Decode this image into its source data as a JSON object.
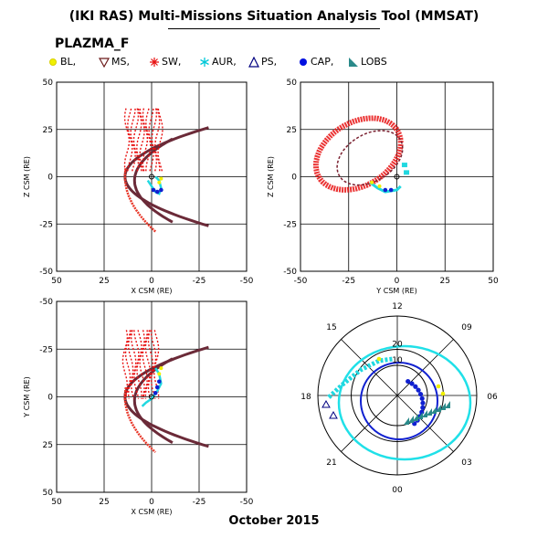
{
  "title": "(IKI RAS) Multi-Missions Situation Analysis Tool (MMSAT)",
  "mission": "PLAZMA_F",
  "date": "October 2015",
  "legend": [
    {
      "label": "BL,",
      "color": "#f0f000",
      "marker": "circle-dot"
    },
    {
      "label": "MS,",
      "color": "#6b1a1a",
      "marker": "triangle-down"
    },
    {
      "label": "SW,",
      "color": "#e81010",
      "marker": "plus-star"
    },
    {
      "label": "AUR,",
      "color": "#00d0d8",
      "marker": "asterisk"
    },
    {
      "label": "PS,",
      "color": "#000080",
      "marker": "triangle-up"
    },
    {
      "label": "CAP,",
      "color": "#0010e0",
      "marker": "filled-circle"
    },
    {
      "label": "LOBS",
      "color": "#2a8a8a",
      "marker": "flag"
    }
  ],
  "colors": {
    "bowshock": "#e8382a",
    "magnetopause": "#6b2a38",
    "polar_outer": "#20e0e8",
    "polar_inner": "#1020d0"
  },
  "chart_data": [
    {
      "type": "scatter",
      "panel": "x-z",
      "xlabel": "X CSM (RE)",
      "ylabel": "Z CSM (RE)",
      "xlim": [
        50,
        -50
      ],
      "ylim": [
        -50,
        50
      ],
      "xticks": [
        "50",
        "25",
        "0",
        "-25",
        "-50"
      ],
      "yticks": [
        "50",
        "25",
        "0",
        "-25",
        "-50"
      ],
      "grid": true
    },
    {
      "type": "scatter",
      "panel": "y-z",
      "xlabel": "Y CSM (RE)",
      "ylabel": "Z CSM (RE)",
      "xlim": [
        -50,
        50
      ],
      "ylim": [
        -50,
        50
      ],
      "xticks": [
        "-50",
        "-25",
        "0",
        "25",
        "50"
      ],
      "yticks": [
        "50",
        "25",
        "0",
        "-25",
        "-50"
      ],
      "grid": true
    },
    {
      "type": "scatter",
      "panel": "x-y",
      "xlabel": "X CSM (RE)",
      "ylabel": "Y CSM (RE)",
      "xlim": [
        50,
        -50
      ],
      "ylim": [
        50,
        -50
      ],
      "xticks": [
        "50",
        "25",
        "0",
        "-25",
        "-50"
      ],
      "yticks": [
        "-50",
        "-25",
        "0",
        "25",
        "50"
      ],
      "grid": true
    },
    {
      "type": "scatter",
      "panel": "polar-mlt",
      "mlt_labels": [
        "12",
        "15",
        "18",
        "21",
        "00",
        "03",
        "06",
        "09"
      ],
      "radial_labels": [
        "20",
        "10"
      ],
      "grid": true
    }
  ]
}
